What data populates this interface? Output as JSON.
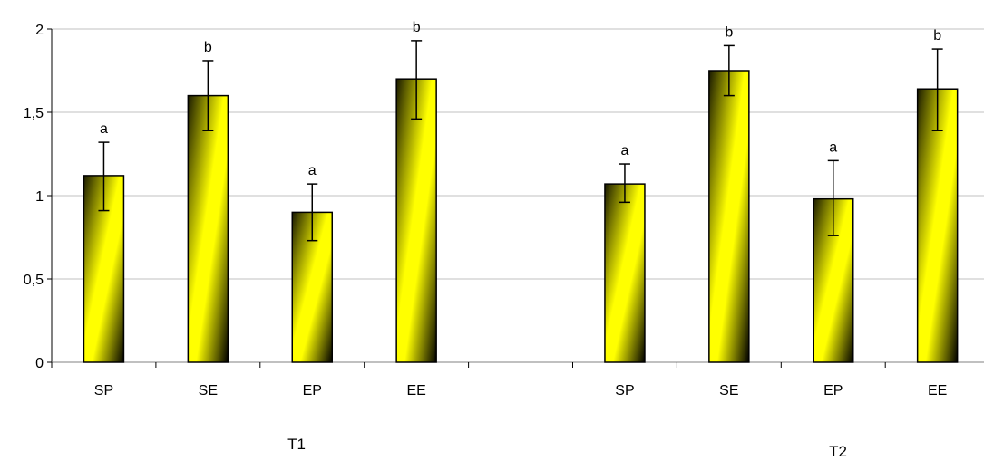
{
  "chart_data": {
    "type": "bar",
    "ylim": [
      0,
      2
    ],
    "yticks": [
      0,
      0.5,
      1,
      1.5,
      2
    ],
    "ytick_labels": [
      "0",
      "0,5",
      "1",
      "1,5",
      "2"
    ],
    "grid": true,
    "groups": [
      {
        "label": "T1",
        "bars": [
          {
            "category": "SP",
            "value": 1.12,
            "err_low": 0.91,
            "err_high": 1.32,
            "letter": "a"
          },
          {
            "category": "SE",
            "value": 1.6,
            "err_low": 1.39,
            "err_high": 1.81,
            "letter": "b"
          },
          {
            "category": "EP",
            "value": 0.9,
            "err_low": 0.73,
            "err_high": 1.07,
            "letter": "a"
          },
          {
            "category": "EE",
            "value": 1.7,
            "err_low": 1.46,
            "err_high": 1.93,
            "letter": "b"
          }
        ]
      },
      {
        "label": "T2",
        "bars": [
          {
            "category": "SP",
            "value": 1.07,
            "err_low": 0.96,
            "err_high": 1.19,
            "letter": "a"
          },
          {
            "category": "SE",
            "value": 1.75,
            "err_low": 1.6,
            "err_high": 1.9,
            "letter": "b"
          },
          {
            "category": "EP",
            "value": 0.98,
            "err_low": 0.76,
            "err_high": 1.21,
            "letter": "a"
          },
          {
            "category": "EE",
            "value": 1.64,
            "err_low": 1.39,
            "err_high": 1.88,
            "letter": "b"
          }
        ]
      }
    ],
    "colors": {
      "bar_light": "#ffff00",
      "bar_dark": "#000000",
      "grid": "#c0c0c0",
      "axis": "#808080"
    }
  }
}
